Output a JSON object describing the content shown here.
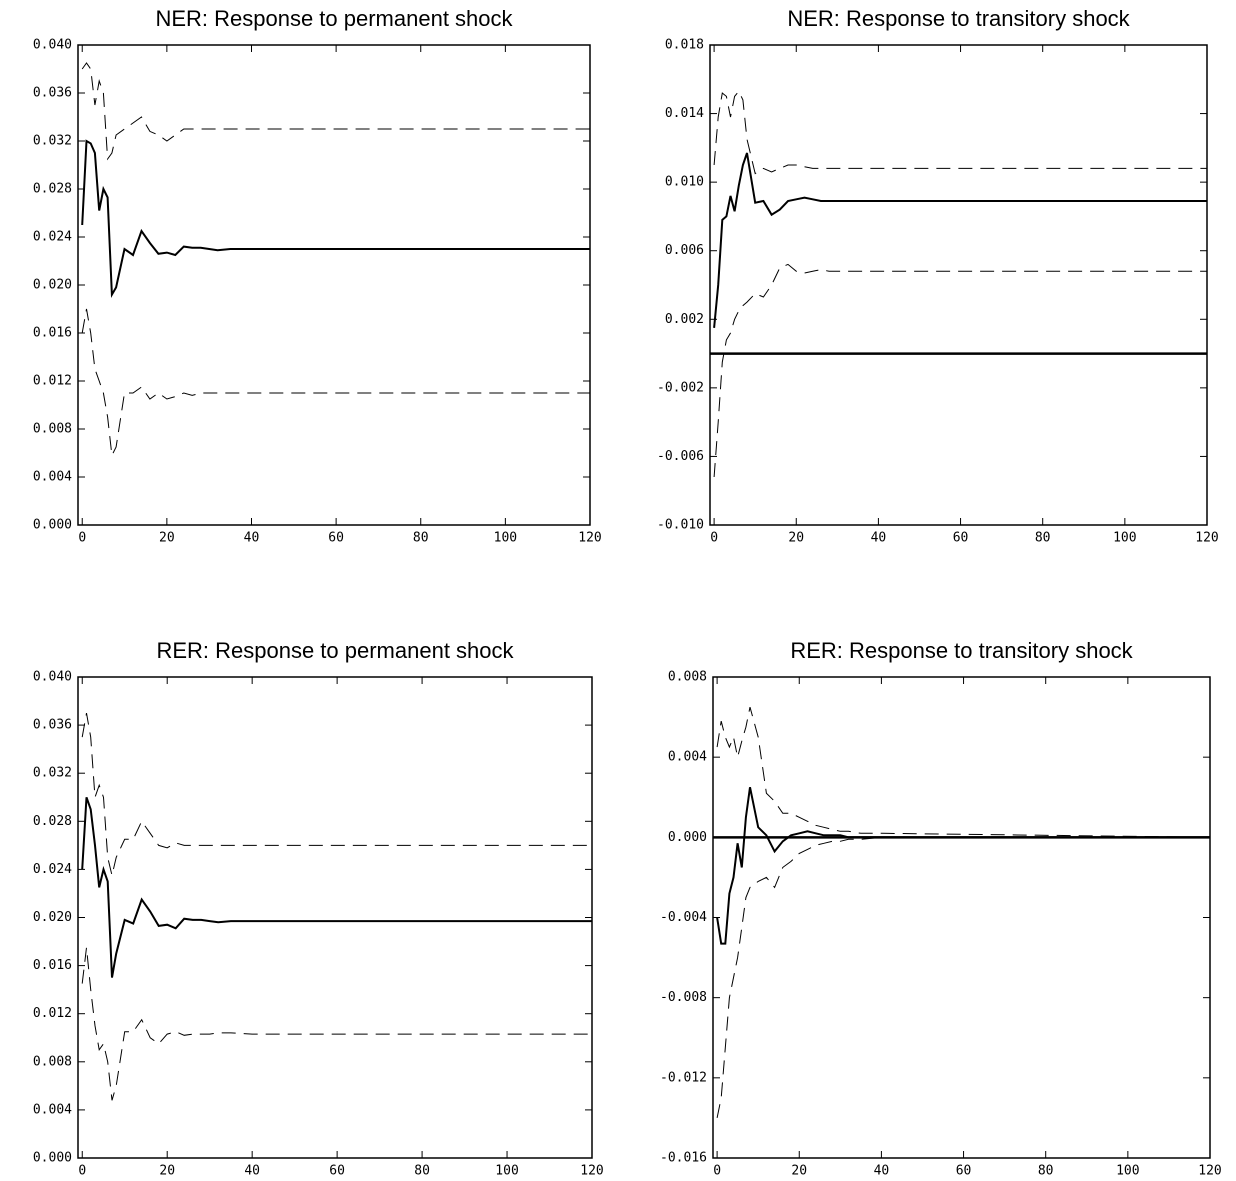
{
  "chart_data": [
    {
      "type": "line",
      "title": "NER: Response to permanent shock",
      "x": [
        0,
        1,
        2,
        3,
        4,
        5,
        6,
        7,
        8,
        10,
        12,
        14,
        16,
        18,
        20,
        22,
        24,
        26,
        28,
        30,
        32,
        35,
        40,
        120
      ],
      "series": [
        {
          "color": "#000000",
          "dash": "solid",
          "values": [
            0.025,
            0.032,
            0.0318,
            0.031,
            0.0262,
            0.028,
            0.0273,
            0.0192,
            0.0198,
            0.023,
            0.0225,
            0.0245,
            0.0235,
            0.0226,
            0.0227,
            0.0225,
            0.0232,
            0.0231,
            0.0231,
            0.023,
            0.0229,
            0.023,
            0.023,
            0.023
          ]
        },
        {
          "color": "#000000",
          "dash": "dashed",
          "values": [
            0.038,
            0.0385,
            0.038,
            0.035,
            0.037,
            0.036,
            0.0305,
            0.031,
            0.0325,
            0.033,
            0.0335,
            0.034,
            0.0328,
            0.0325,
            0.032,
            0.0325,
            0.033,
            0.033,
            0.033,
            0.033,
            0.033,
            0.033,
            0.033,
            0.033
          ]
        },
        {
          "color": "#000000",
          "dash": "dashed",
          "values": [
            0.016,
            0.018,
            0.016,
            0.013,
            0.012,
            0.011,
            0.009,
            0.0058,
            0.0065,
            0.011,
            0.011,
            0.0115,
            0.0105,
            0.011,
            0.0105,
            0.0107,
            0.011,
            0.0108,
            0.011,
            0.011,
            0.011,
            0.011,
            0.011,
            0.011
          ]
        }
      ],
      "xlim": [
        -1,
        120
      ],
      "xticks": [
        0,
        20,
        40,
        60,
        80,
        100,
        120
      ],
      "ylim": [
        0,
        0.04
      ],
      "yticks": [
        {
          "value": 0,
          "label": "0.000"
        },
        {
          "value": 0.004,
          "label": "0.004"
        },
        {
          "value": 0.008,
          "label": "0.008"
        },
        {
          "value": 0.012,
          "label": "0.012"
        },
        {
          "value": 0.016,
          "label": "0.016"
        },
        {
          "value": 0.02,
          "label": "0.020"
        },
        {
          "value": 0.024,
          "label": "0.024"
        },
        {
          "value": 0.028,
          "label": "0.028"
        },
        {
          "value": 0.032,
          "label": "0.032"
        },
        {
          "value": 0.036,
          "label": "0.036"
        },
        {
          "value": 0.04,
          "label": "0.040"
        }
      ]
    },
    {
      "type": "line",
      "title": "NER: Response to transitory shock",
      "x": [
        0,
        1,
        2,
        3,
        4,
        5,
        6,
        7,
        8,
        10,
        12,
        14,
        16,
        18,
        20,
        22,
        24,
        26,
        28,
        30,
        32,
        35,
        40,
        120
      ],
      "series": [
        {
          "color": "#000000",
          "dash": "solid",
          "values": [
            0.0015,
            0.004,
            0.0078,
            0.008,
            0.0092,
            0.0083,
            0.0098,
            0.011,
            0.0117,
            0.0088,
            0.0089,
            0.0081,
            0.0084,
            0.0089,
            0.009,
            0.0091,
            0.009,
            0.0089,
            0.0089,
            0.0089,
            0.0089,
            0.0089,
            0.0089,
            0.0089
          ]
        },
        {
          "color": "#000000",
          "dash": "dashed",
          "values": [
            0.011,
            0.0138,
            0.0152,
            0.015,
            0.0138,
            0.015,
            0.0153,
            0.0148,
            0.0125,
            0.0105,
            0.0108,
            0.0106,
            0.0108,
            0.011,
            0.011,
            0.0109,
            0.0108,
            0.0108,
            0.0108,
            0.0108,
            0.0108,
            0.0108,
            0.0108,
            0.0108
          ]
        },
        {
          "color": "#000000",
          "dash": "dashed",
          "values": [
            -0.0072,
            -0.004,
            -0.0005,
            0.0008,
            0.0012,
            0.002,
            0.0025,
            0.0028,
            0.003,
            0.0035,
            0.0033,
            0.004,
            0.005,
            0.0052,
            0.0048,
            0.0047,
            0.0048,
            0.0049,
            0.0048,
            0.0048,
            0.0048,
            0.0048,
            0.0048,
            0.0048
          ]
        }
      ],
      "hline": 0,
      "xlim": [
        -1,
        120
      ],
      "xticks": [
        0,
        20,
        40,
        60,
        80,
        100,
        120
      ],
      "ylim": [
        -0.01,
        0.018
      ],
      "yticks": [
        {
          "value": -0.01,
          "label": "-0.010"
        },
        {
          "value": -0.006,
          "label": "-0.006"
        },
        {
          "value": -0.002,
          "label": "-0.002"
        },
        {
          "value": 0.002,
          "label": "0.002"
        },
        {
          "value": 0.006,
          "label": "0.006"
        },
        {
          "value": 0.01,
          "label": "0.010"
        },
        {
          "value": 0.014,
          "label": "0.014"
        },
        {
          "value": 0.018,
          "label": "0.018"
        }
      ]
    },
    {
      "type": "line",
      "title": "RER: Response to permanent shock",
      "x": [
        0,
        1,
        2,
        3,
        4,
        5,
        6,
        7,
        8,
        10,
        12,
        14,
        16,
        18,
        20,
        22,
        24,
        26,
        28,
        30,
        32,
        35,
        40,
        120
      ],
      "series": [
        {
          "color": "#000000",
          "dash": "solid",
          "values": [
            0.024,
            0.03,
            0.029,
            0.026,
            0.0225,
            0.024,
            0.023,
            0.015,
            0.017,
            0.0198,
            0.0195,
            0.0215,
            0.0205,
            0.0193,
            0.0194,
            0.0191,
            0.0199,
            0.0198,
            0.0198,
            0.0197,
            0.0196,
            0.0197,
            0.0197,
            0.0197
          ]
        },
        {
          "color": "#000000",
          "dash": "dashed",
          "values": [
            0.035,
            0.037,
            0.035,
            0.03,
            0.031,
            0.03,
            0.025,
            0.0235,
            0.025,
            0.0265,
            0.0265,
            0.028,
            0.027,
            0.026,
            0.0258,
            0.0262,
            0.026,
            0.026,
            0.026,
            0.026,
            0.026,
            0.026,
            0.026,
            0.026
          ]
        },
        {
          "color": "#000000",
          "dash": "dashed",
          "values": [
            0.0145,
            0.0175,
            0.014,
            0.011,
            0.009,
            0.0095,
            0.008,
            0.0048,
            0.006,
            0.0105,
            0.0105,
            0.0115,
            0.01,
            0.0095,
            0.0103,
            0.0105,
            0.0102,
            0.0103,
            0.0103,
            0.0103,
            0.0104,
            0.0104,
            0.0103,
            0.0103
          ]
        }
      ],
      "xlim": [
        -1,
        120
      ],
      "xticks": [
        0,
        20,
        40,
        60,
        80,
        100,
        120
      ],
      "ylim": [
        0,
        0.04
      ],
      "yticks": [
        {
          "value": 0,
          "label": "0.000"
        },
        {
          "value": 0.004,
          "label": "0.004"
        },
        {
          "value": 0.008,
          "label": "0.008"
        },
        {
          "value": 0.012,
          "label": "0.012"
        },
        {
          "value": 0.016,
          "label": "0.016"
        },
        {
          "value": 0.02,
          "label": "0.020"
        },
        {
          "value": 0.024,
          "label": "0.024"
        },
        {
          "value": 0.028,
          "label": "0.028"
        },
        {
          "value": 0.032,
          "label": "0.032"
        },
        {
          "value": 0.036,
          "label": "0.036"
        },
        {
          "value": 0.04,
          "label": "0.040"
        }
      ]
    },
    {
      "type": "line",
      "title": "RER: Response to transitory shock",
      "x": [
        0,
        1,
        2,
        3,
        4,
        5,
        6,
        7,
        8,
        10,
        12,
        14,
        16,
        18,
        20,
        22,
        24,
        26,
        28,
        30,
        32,
        35,
        40,
        120
      ],
      "series": [
        {
          "color": "#000000",
          "dash": "solid",
          "values": [
            -0.004,
            -0.0053,
            -0.0053,
            -0.0028,
            -0.002,
            -0.0003,
            -0.0015,
            0.001,
            0.0025,
            0.0005,
            0.0001,
            -0.0007,
            -0.0002,
            0.0001,
            0.0002,
            0.0003,
            0.0002,
            0.0001,
            0.0001,
            0.0001,
            0,
            0,
            0,
            0
          ]
        },
        {
          "color": "#000000",
          "dash": "dashed",
          "values": [
            0.0045,
            0.0058,
            0.005,
            0.0045,
            0.005,
            0.004,
            0.0048,
            0.0055,
            0.0065,
            0.005,
            0.0022,
            0.0018,
            0.0012,
            0.0012,
            0.001,
            0.0008,
            0.0006,
            0.0005,
            0.0004,
            0.0003,
            0.0003,
            0.0002,
            0.0002,
            0
          ]
        },
        {
          "color": "#000000",
          "dash": "dashed",
          "values": [
            -0.014,
            -0.013,
            -0.0105,
            -0.008,
            -0.007,
            -0.006,
            -0.0045,
            -0.003,
            -0.0025,
            -0.0022,
            -0.002,
            -0.0025,
            -0.0015,
            -0.0012,
            -0.0008,
            -0.0006,
            -0.0004,
            -0.0003,
            -0.0002,
            -0.0002,
            -0.0001,
            -0.0001,
            0,
            0
          ]
        }
      ],
      "hline": 0,
      "xlim": [
        -1,
        120
      ],
      "xticks": [
        0,
        20,
        40,
        60,
        80,
        100,
        120
      ],
      "ylim": [
        -0.016,
        0.008
      ],
      "yticks": [
        {
          "value": -0.016,
          "label": "-0.016"
        },
        {
          "value": -0.012,
          "label": "-0.012"
        },
        {
          "value": -0.008,
          "label": "-0.008"
        },
        {
          "value": -0.004,
          "label": "-0.004"
        },
        {
          "value": 0,
          "label": "0.000"
        },
        {
          "value": 0.004,
          "label": "0.004"
        },
        {
          "value": 0.008,
          "label": "0.008"
        }
      ]
    }
  ]
}
